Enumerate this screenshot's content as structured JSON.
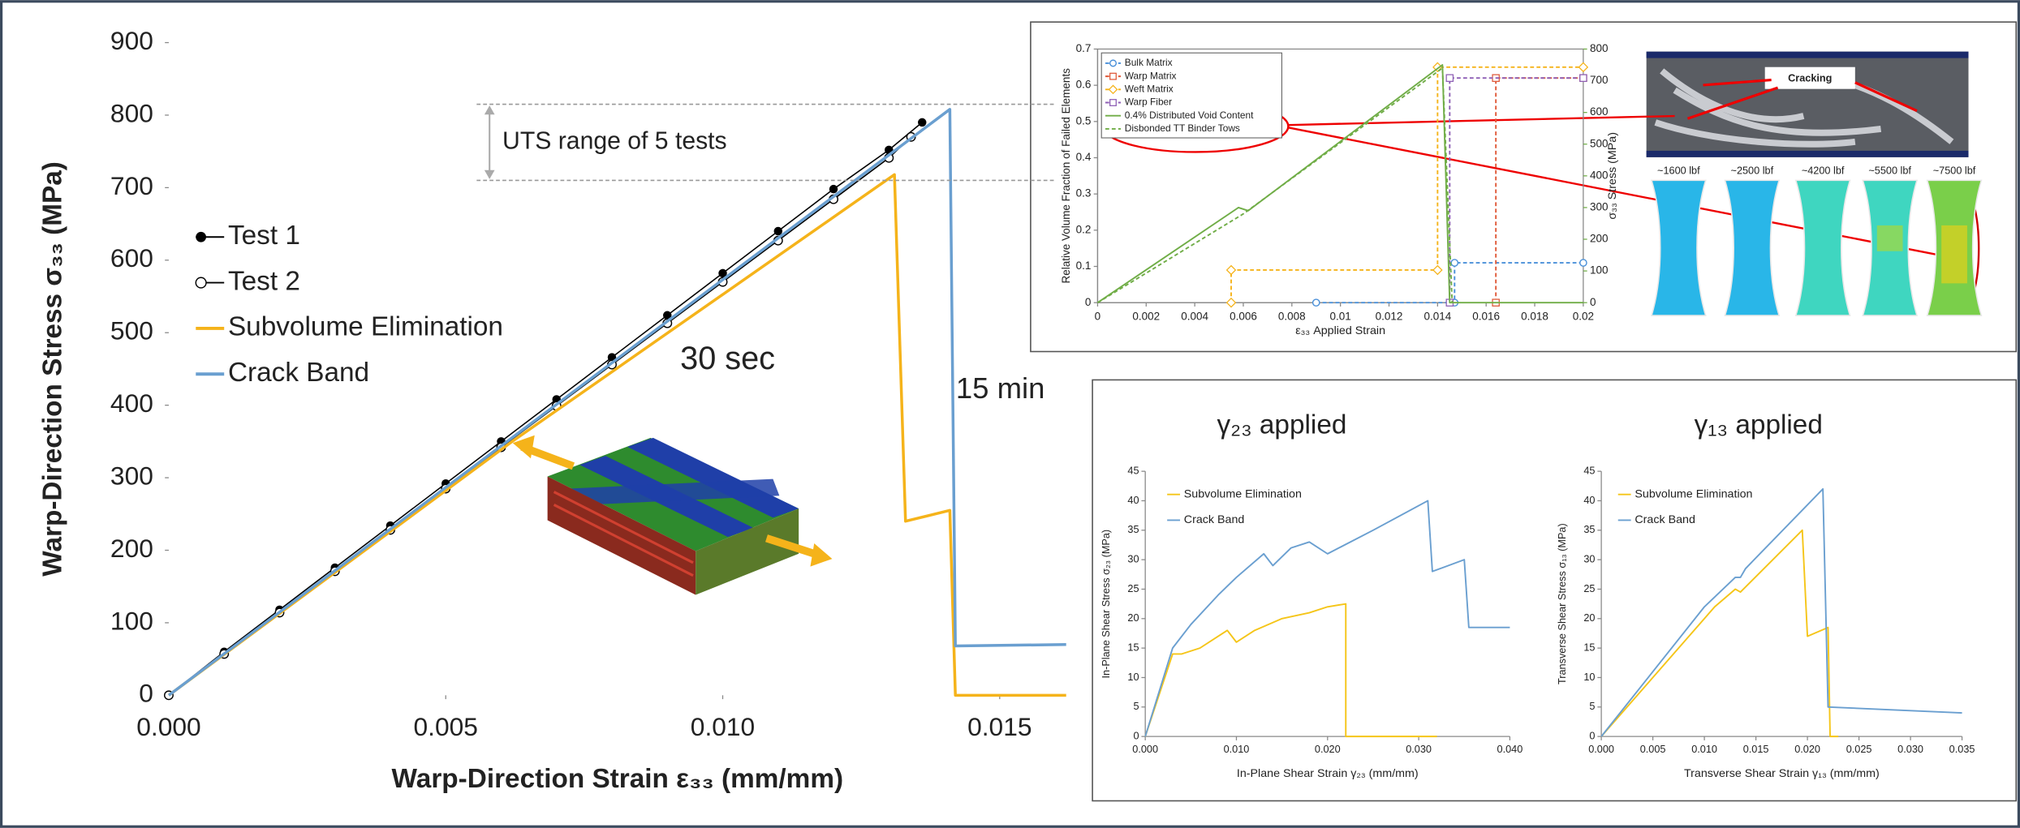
{
  "chart_data": [
    {
      "type": "line",
      "xlabel": "Warp-Direction Strain ε₃₃ (mm/mm)",
      "ylabel": "Warp-Direction Stress σ₃₃ (MPa)",
      "xlim": [
        0,
        0.0162
      ],
      "ylim": [
        0,
        900
      ],
      "xticks": [
        {
          "value": 0,
          "label": "0.000"
        },
        {
          "value": 0.005,
          "label": "0.005"
        },
        {
          "value": 0.01,
          "label": "0.010"
        },
        {
          "value": 0.015,
          "label": "0.015"
        }
      ],
      "yticks": [
        0,
        100,
        200,
        300,
        400,
        500,
        600,
        700,
        800,
        900
      ],
      "legend": "upper left",
      "series": [
        {
          "name": "Test 1",
          "color": "#000000",
          "marker": "filled-circle",
          "x": [
            0,
            0.001,
            0.002,
            0.003,
            0.004,
            0.005,
            0.006,
            0.007,
            0.008,
            0.009,
            0.01,
            0.011,
            0.012,
            0.013,
            0.0136
          ],
          "values": [
            0,
            60,
            118,
            176,
            234,
            292,
            350,
            408,
            466,
            524,
            582,
            640,
            698,
            752,
            790
          ]
        },
        {
          "name": "Test 2",
          "color": "#000000",
          "marker": "open-circle",
          "x": [
            0,
            0.001,
            0.002,
            0.003,
            0.004,
            0.005,
            0.006,
            0.007,
            0.008,
            0.009,
            0.01,
            0.011,
            0.012,
            0.013,
            0.0134
          ],
          "values": [
            0,
            57,
            114,
            171,
            228,
            285,
            342,
            399,
            456,
            513,
            570,
            627,
            684,
            741,
            770
          ]
        },
        {
          "name": "Subvolume Elimination",
          "color": "#f5b31a",
          "x": [
            0,
            0.0062,
            0.0131,
            0.0133,
            0.0141,
            0.0142,
            0.0162
          ],
          "values": [
            0,
            350,
            718,
            240,
            255,
            0,
            0
          ]
        },
        {
          "name": "Crack Band",
          "color": "#6a9fd0",
          "x": [
            0,
            0.0141,
            0.0142,
            0.0162
          ],
          "values": [
            0,
            808,
            68,
            70
          ]
        }
      ],
      "uts_range": [
        710,
        815
      ],
      "annotations": {
        "uts": "UTS range of 5 tests",
        "short_time": "30 sec",
        "long_time": "15 min"
      }
    },
    {
      "type": "line",
      "xlabel": "ε₃₃ Applied Strain",
      "ylabel": "Relative Volume Fraction of Failed Elements",
      "y2label": "σ₃₃ Stress (MPa)",
      "y2_color": "#70ad47",
      "xlim": [
        0,
        0.02
      ],
      "ylim": [
        0,
        0.7
      ],
      "y2lim": [
        0,
        800
      ],
      "xticks": [
        0,
        0.002,
        0.004,
        0.006,
        0.008,
        0.01,
        0.012,
        0.014,
        0.016,
        0.018,
        0.02
      ],
      "yticks": [
        0,
        0.1,
        0.2,
        0.3,
        0.4,
        0.5,
        0.6,
        0.7
      ],
      "y2ticks": [
        0,
        100,
        200,
        300,
        400,
        500,
        600,
        700,
        800
      ],
      "legend": "upper left",
      "series": [
        {
          "name": "Bulk Matrix",
          "color": "#4a90d9",
          "marker": "open-circle",
          "dash": true,
          "x": [
            0.009,
            0.0147,
            0.0147,
            0.02
          ],
          "values": [
            0,
            0,
            0.11,
            0.11
          ]
        },
        {
          "name": "Warp Matrix",
          "color": "#e05a3a",
          "marker": "square",
          "dash": true,
          "x": [
            0.0164,
            0.0164,
            0.02
          ],
          "values": [
            0,
            0.62,
            0.62
          ]
        },
        {
          "name": "Weft Matrix",
          "color": "#f5b31a",
          "marker": "diamond",
          "dash": true,
          "x": [
            0.0055,
            0.0055,
            0.014,
            0.014,
            0.02
          ],
          "values": [
            0,
            0.09,
            0.09,
            0.65,
            0.65
          ]
        },
        {
          "name": "Warp Fiber",
          "color": "#8e5fb5",
          "marker": "square",
          "dash": true,
          "x": [
            0.0145,
            0.0145,
            0.02
          ],
          "values": [
            0,
            0.62,
            0.62
          ]
        },
        {
          "name": "0.4% Distributed Void Content",
          "color": "#70ad47",
          "axis": "y2",
          "x": [
            0,
            0.0058,
            0.0062,
            0.0142,
            0.0145,
            0.02
          ],
          "values": [
            0,
            300,
            290,
            750,
            0,
            0
          ]
        },
        {
          "name": "Disbonded TT Binder Tows",
          "color": "#70ad47",
          "axis": "y2",
          "dash": true,
          "x": [
            0,
            0.006,
            0.0142,
            0.0146
          ],
          "values": [
            0,
            280,
            740,
            0
          ]
        }
      ],
      "photo_labels": {
        "crack": "Cracking",
        "loads": [
          "~1600 lbf",
          "~2500 lbf",
          "~4200 lbf",
          "~5500 lbf",
          "~7500 lbf"
        ]
      }
    },
    {
      "type": "line",
      "title": "γ₂₃ applied",
      "xlabel": "In-Plane Shear Strain γ₂₃ (mm/mm)",
      "ylabel": "In-Plane Shear Stress σ₂₃ (MPa)",
      "xlim": [
        0,
        0.04
      ],
      "ylim": [
        0,
        45
      ],
      "xticks": [
        {
          "value": 0,
          "label": "0.000"
        },
        {
          "value": 0.01,
          "label": "0.010"
        },
        {
          "value": 0.02,
          "label": "0.020"
        },
        {
          "value": 0.03,
          "label": "0.030"
        },
        {
          "value": 0.04,
          "label": "0.040"
        }
      ],
      "yticks": [
        0,
        5,
        10,
        15,
        20,
        25,
        30,
        35,
        40,
        45
      ],
      "legend": "upper left",
      "series": [
        {
          "name": "Subvolume Elimination",
          "color": "#f5c518",
          "x": [
            0,
            0.003,
            0.004,
            0.006,
            0.008,
            0.009,
            0.01,
            0.012,
            0.015,
            0.018,
            0.02,
            0.022,
            0.022,
            0.032
          ],
          "values": [
            0,
            14,
            14,
            15,
            17,
            18,
            16,
            18,
            20,
            21,
            22,
            22.5,
            0,
            0
          ]
        },
        {
          "name": "Crack Band",
          "color": "#6a9fd0",
          "x": [
            0,
            0.003,
            0.005,
            0.008,
            0.01,
            0.013,
            0.014,
            0.016,
            0.018,
            0.02,
            0.025,
            0.031,
            0.0315,
            0.035,
            0.0355,
            0.04
          ],
          "values": [
            0,
            15,
            19,
            24,
            27,
            31,
            29,
            32,
            33,
            31,
            35,
            40,
            28,
            30,
            18.5,
            18.5
          ]
        }
      ]
    },
    {
      "type": "line",
      "title": "γ₁₃ applied",
      "xlabel": "Transverse Shear Strain γ₁₃ (mm/mm)",
      "ylabel": "Transverse Shear Stress σ₁₃ (MPa)",
      "xlim": [
        0,
        0.035
      ],
      "ylim": [
        0,
        45
      ],
      "xticks": [
        {
          "value": 0,
          "label": "0.000"
        },
        {
          "value": 0.005,
          "label": "0.005"
        },
        {
          "value": 0.01,
          "label": "0.010"
        },
        {
          "value": 0.015,
          "label": "0.015"
        },
        {
          "value": 0.02,
          "label": "0.020"
        },
        {
          "value": 0.025,
          "label": "0.025"
        },
        {
          "value": 0.03,
          "label": "0.030"
        },
        {
          "value": 0.035,
          "label": "0.035"
        }
      ],
      "yticks": [
        0,
        5,
        10,
        15,
        20,
        25,
        30,
        35,
        40,
        45
      ],
      "legend": "upper left",
      "series": [
        {
          "name": "Subvolume Elimination",
          "color": "#f5c518",
          "x": [
            0,
            0.011,
            0.013,
            0.0135,
            0.0195,
            0.02,
            0.022,
            0.0222,
            0.023
          ],
          "values": [
            0,
            22,
            25,
            24.5,
            35,
            17,
            18.5,
            0,
            0
          ]
        },
        {
          "name": "Crack Band",
          "color": "#6a9fd0",
          "x": [
            0,
            0.01,
            0.013,
            0.0135,
            0.014,
            0.0215,
            0.022,
            0.035
          ],
          "values": [
            0,
            22,
            27,
            27,
            28.5,
            42,
            5,
            4
          ]
        }
      ]
    }
  ]
}
